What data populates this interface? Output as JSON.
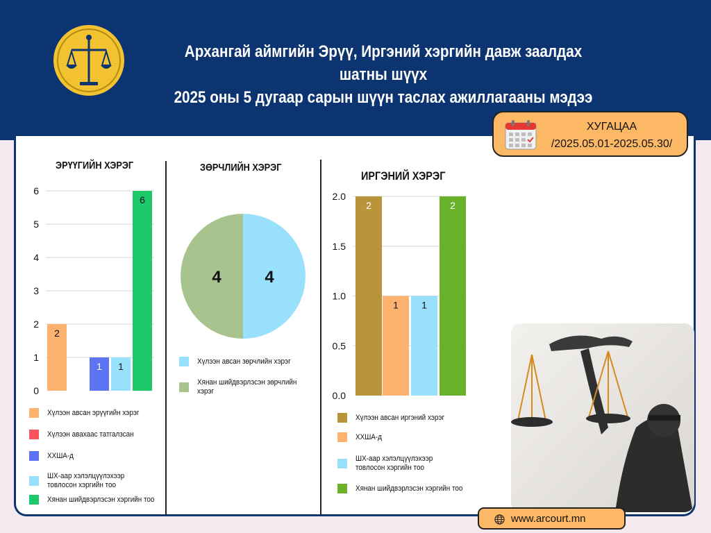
{
  "header": {
    "title_line1": "Архангай аймгийн Эрүү, Иргэний хэргийн давж заалдах шатны шүүх",
    "title_line2": "2025 оны 5 дугаар сарын шүүн таслах ажиллагааны мэдээ"
  },
  "period": {
    "label": "ХУГАЦАА",
    "range": "/2025.05.01-2025.05.30/"
  },
  "footer": {
    "website": "www.arcourt.mn"
  },
  "colors": {
    "navy": "#0c3470",
    "accent": "#fdb865"
  },
  "chart_data": [
    {
      "type": "bar",
      "title": "ЭРҮҮГИЙН ХЭРЭГ",
      "ylim": [
        0,
        6
      ],
      "yticks": [
        "0",
        "1",
        "2",
        "3",
        "4",
        "5",
        "6"
      ],
      "series": [
        {
          "name": "Хүлээн авсан эрүүгийн хэрэг",
          "value": 2,
          "color": "#fdb26f"
        },
        {
          "name": "Хүлээн авахаас татгалзсан",
          "value": 0,
          "color": "#f9545b"
        },
        {
          "name": "ХХШA-д",
          "value": 1,
          "color": "#5c73f2"
        },
        {
          "name": "ШХ-аар хэлэлцүүлэхээр товлосон хэргийн тоо",
          "value": 1,
          "color": "#98e0fb"
        },
        {
          "name": "Хянан шийдвэрлэсэн хэргийн тоо",
          "value": 6,
          "color": "#1ec96a"
        }
      ]
    },
    {
      "type": "pie",
      "title": "ЗӨРЧЛИЙН ХЭРЭГ",
      "slices": [
        {
          "name": "Хүлээн авсан зөрчлийн хэрэг",
          "value": 4,
          "color": "#98e0fb"
        },
        {
          "name": "Хянан шийдвэрлэсэн зөрчлийн хэрэг",
          "value": 4,
          "color": "#a8c48e"
        }
      ]
    },
    {
      "type": "bar",
      "title": "ИРГЭНИЙ ХЭРЭГ",
      "ylim": [
        0,
        2
      ],
      "yticks": [
        "0.0",
        "0.5",
        "1.0",
        "1.5",
        "2.0"
      ],
      "series": [
        {
          "name": "Хүлээн авсан иргэний хэрэг",
          "value": 2,
          "color": "#b8953a"
        },
        {
          "name": "ХХШA-д",
          "value": 1,
          "color": "#fdb26f"
        },
        {
          "name": "ШХ-аар хэлэлцүүлэхээр товлосон хэргийн тоо",
          "value": 1,
          "color": "#98e0fb"
        },
        {
          "name": "Хянан шийдвэрлэсэн хэргийн тоо",
          "value": 2,
          "color": "#6ab12a"
        }
      ]
    }
  ]
}
